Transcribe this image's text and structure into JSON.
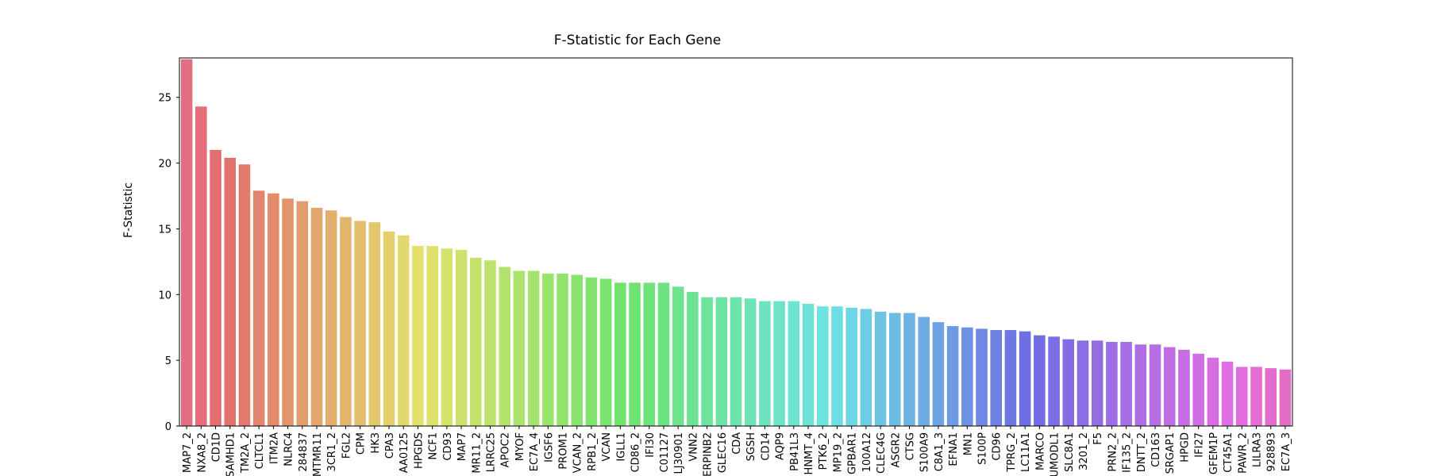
{
  "chart_data": {
    "type": "bar",
    "title": "F-Statistic for Each Gene",
    "xlabel": "",
    "ylabel": "F-Statistic",
    "ylim": [
      0,
      28.0
    ],
    "yticks": [
      0,
      5,
      10,
      15,
      20,
      25
    ],
    "grid": false,
    "categories": [
      "MAP7_2",
      "NXA8_2",
      "CD1D",
      "SAMHD1",
      "TM2A_2",
      "CLTCL1",
      "ITM2A",
      "NLRC4",
      "284837",
      "MTMR11",
      "3CR1_2",
      "FGL2",
      "CPM",
      "HK3",
      "CPA3",
      "AA0125",
      "HPGDS",
      "NCF1",
      "CD93",
      "MAP7",
      "MR11_2",
      "LRRC25",
      "APOC2",
      "MYOF",
      "EC7A_4",
      "IGSF6",
      "PROM1",
      "VCAN_2",
      "RPB1_2",
      "VCAN",
      "IGLL1",
      "CD86_2",
      "IFI30",
      "C01127",
      "LJ30901",
      "VNN2",
      "ERPINB2",
      "GLEC16",
      "CDA",
      "SGSH",
      "CD14",
      "AQP9",
      "PB41L3",
      "HNMT_4",
      "PTK6_2",
      "MP19_2",
      "GPBAR1",
      "100A12",
      "CLEC4G",
      "ASGR2",
      "CTSG",
      "S100A9",
      "C8A1_3",
      "EFNA1",
      "MN1",
      "S100P",
      "CD96",
      "TPRG_2",
      "LC11A1",
      "MARCO",
      "UMODL1",
      "SLC8A1",
      "3201_2",
      "F5",
      "PRN2_2",
      "IF135_2",
      "DNTT_2",
      "CD163",
      "SRGAP1",
      "HPGD",
      "IFI27",
      "GFEM1P",
      "CT45A1",
      "PAWR_2",
      "LILRA3",
      "928893",
      "EC7A_3"
    ],
    "values": [
      27.9,
      24.3,
      21.0,
      20.4,
      19.9,
      17.9,
      17.7,
      17.3,
      17.1,
      16.6,
      16.4,
      15.9,
      15.6,
      15.5,
      14.8,
      14.5,
      13.7,
      13.7,
      13.5,
      13.4,
      12.8,
      12.6,
      12.1,
      11.8,
      11.8,
      11.6,
      11.6,
      11.5,
      11.3,
      11.2,
      10.9,
      10.9,
      10.9,
      10.9,
      10.6,
      10.2,
      9.8,
      9.8,
      9.8,
      9.7,
      9.5,
      9.5,
      9.5,
      9.3,
      9.1,
      9.1,
      9.0,
      8.9,
      8.7,
      8.6,
      8.6,
      8.3,
      7.9,
      7.6,
      7.5,
      7.4,
      7.3,
      7.3,
      7.2,
      6.9,
      6.8,
      6.6,
      6.5,
      6.5,
      6.4,
      6.4,
      6.2,
      6.2,
      6.0,
      5.8,
      5.5,
      5.2,
      4.9,
      4.5,
      4.5,
      4.4,
      4.3
    ],
    "palette": {
      "hue_start": 350,
      "hue_end": 320,
      "saturation": 0.68,
      "lightness": 0.66
    }
  }
}
